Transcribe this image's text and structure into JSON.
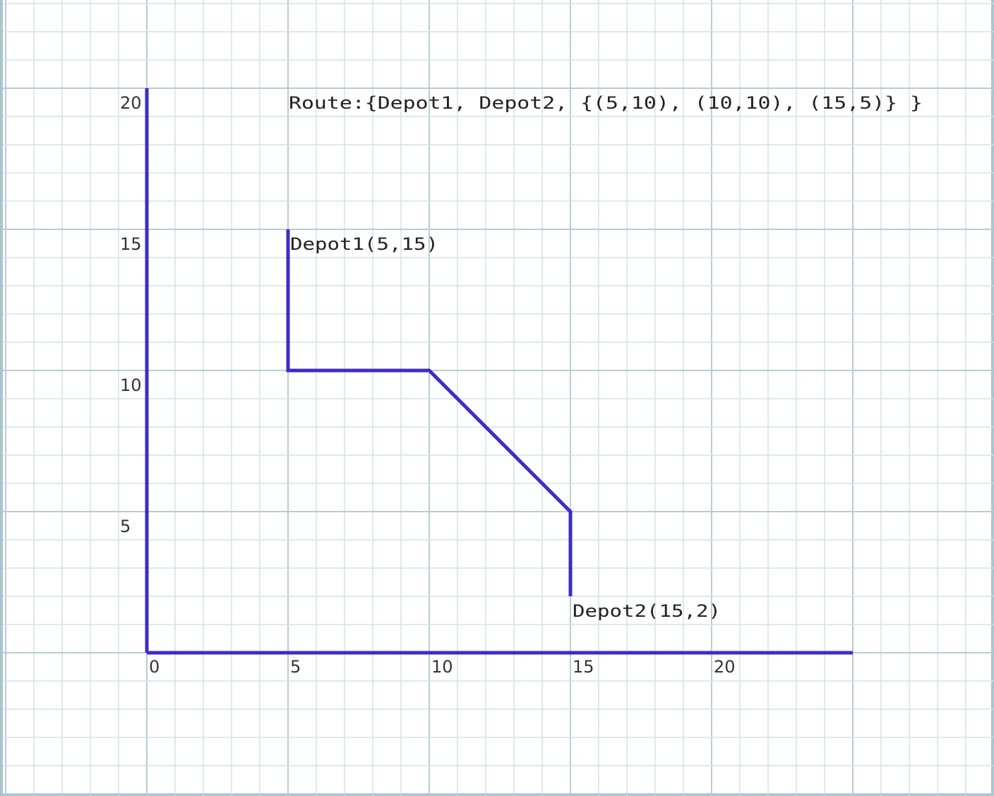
{
  "diagram": {
    "route_label": "Route:{Depot1, Depot2, {(5,10), (10,10), (15,5)} }",
    "x_ticks": [
      "0",
      "5",
      "10",
      "15",
      "20"
    ],
    "y_ticks": [
      "5",
      "10",
      "15",
      "20"
    ],
    "x_axis_range": [
      0,
      25
    ],
    "y_axis_range": [
      0,
      20
    ],
    "depots": [
      {
        "name": "Depot1",
        "label": "Depot1(5,15)",
        "x": 5,
        "y": 15
      },
      {
        "name": "Depot2",
        "label": "Depot2(15,2)",
        "x": 15,
        "y": 2
      }
    ],
    "route_points": [
      {
        "x": 5,
        "y": 15
      },
      {
        "x": 5,
        "y": 10
      },
      {
        "x": 10,
        "y": 10
      },
      {
        "x": 15,
        "y": 5
      },
      {
        "x": 15,
        "y": 2
      }
    ],
    "colors": {
      "line": "#3c2bcc",
      "grid_minor": "#cfe3ec",
      "grid_major": "#b8ccd6"
    }
  }
}
